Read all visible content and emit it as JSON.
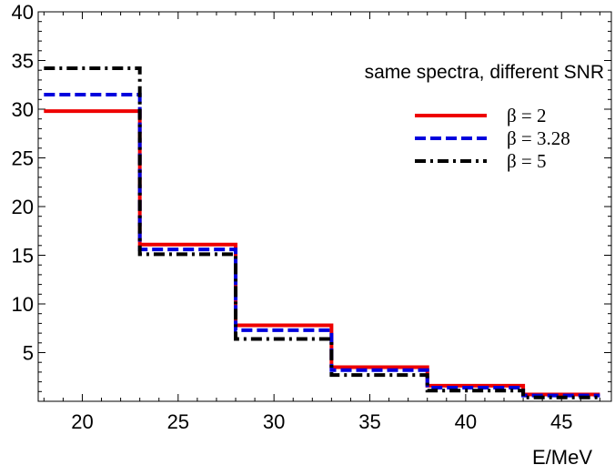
{
  "chart_data": {
    "type": "line",
    "title": "",
    "xlabel": "E/MeV",
    "ylabel": "",
    "xlim": [
      17.7,
      47.6
    ],
    "ylim": [
      0,
      40
    ],
    "x_ticks": [
      20,
      25,
      30,
      35,
      40,
      45
    ],
    "y_ticks": [
      5,
      10,
      15,
      20,
      25,
      30,
      35,
      40
    ],
    "grid": false,
    "annotation": "same spectra, different SNR",
    "legend_position": "right",
    "bin_edges": [
      18,
      23,
      28,
      33,
      38,
      43,
      47
    ],
    "series": [
      {
        "name": "β = 2",
        "color": "#ee0000",
        "style": "solid",
        "values": [
          29.8,
          16.1,
          7.8,
          3.5,
          1.6,
          0.7
        ]
      },
      {
        "name": "β = 3.28",
        "color": "#0000dd",
        "style": "dashed",
        "values": [
          31.5,
          15.6,
          7.3,
          3.2,
          1.4,
          0.6
        ]
      },
      {
        "name": "β = 5",
        "color": "#000000",
        "style": "dashdot",
        "values": [
          34.2,
          15.1,
          6.4,
          2.7,
          1.1,
          0.4
        ]
      }
    ]
  }
}
